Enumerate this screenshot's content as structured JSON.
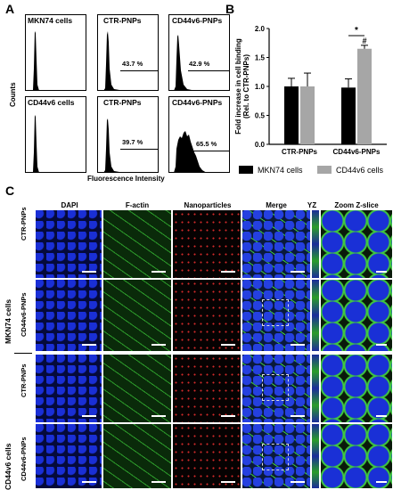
{
  "panel_labels": {
    "a": "A",
    "b": "B",
    "c": "C"
  },
  "panel_a": {
    "y_label": "Counts",
    "x_label": "Fluorescence Intensity",
    "histograms": [
      {
        "title": "MKN74  cells",
        "percent": ""
      },
      {
        "title": "CTR-PNPs",
        "percent": "43.7  %"
      },
      {
        "title": "CD44v6-PNPs",
        "percent": "42.9  %"
      },
      {
        "title": "CD44v6  cells",
        "percent": ""
      },
      {
        "title": "CTR-PNPs",
        "percent": "39.7  %"
      },
      {
        "title": "CD44v6-PNPs",
        "percent": "65.5  %"
      }
    ]
  },
  "chart_data": {
    "type": "bar",
    "categories": [
      "CTR-PNPs",
      "CD44v6-PNPs"
    ],
    "series": [
      {
        "name": "MKN74 cells",
        "values": [
          1.0,
          0.98
        ],
        "errors": [
          0.14,
          0.15
        ],
        "color": "#000000"
      },
      {
        "name": "CD44v6 cells",
        "values": [
          1.0,
          1.65
        ],
        "errors": [
          0.23,
          0.06
        ],
        "color": "#a6a6a6"
      }
    ],
    "ylabel": "Fold increase in cell binding\n(Rel. to CTR-PNPs)",
    "ylim": [
      0,
      2.0
    ],
    "yticks": [
      "0.0",
      "0.5",
      "1.0",
      "1.5",
      "2.0"
    ],
    "annotations": [
      "*",
      "#"
    ],
    "legend": "bottom"
  },
  "panel_c": {
    "columns": [
      "DAPI",
      "F-actin",
      "Nanoparticles",
      "Merge",
      "YZ",
      "Zoom  Z-slice"
    ],
    "row_groups": [
      "MKN74  cells",
      "CD44v6  cells"
    ],
    "row_labels": [
      "CTR-PNPs",
      "CD44v6-PNPs",
      "CTR-PNPs",
      "CD44v6-PNPs"
    ]
  },
  "colors": {
    "dapi": "#1a2fd6",
    "actin": "#3fc93a",
    "np": "#d42a2a",
    "bar_grey": "#a6a6a6"
  }
}
